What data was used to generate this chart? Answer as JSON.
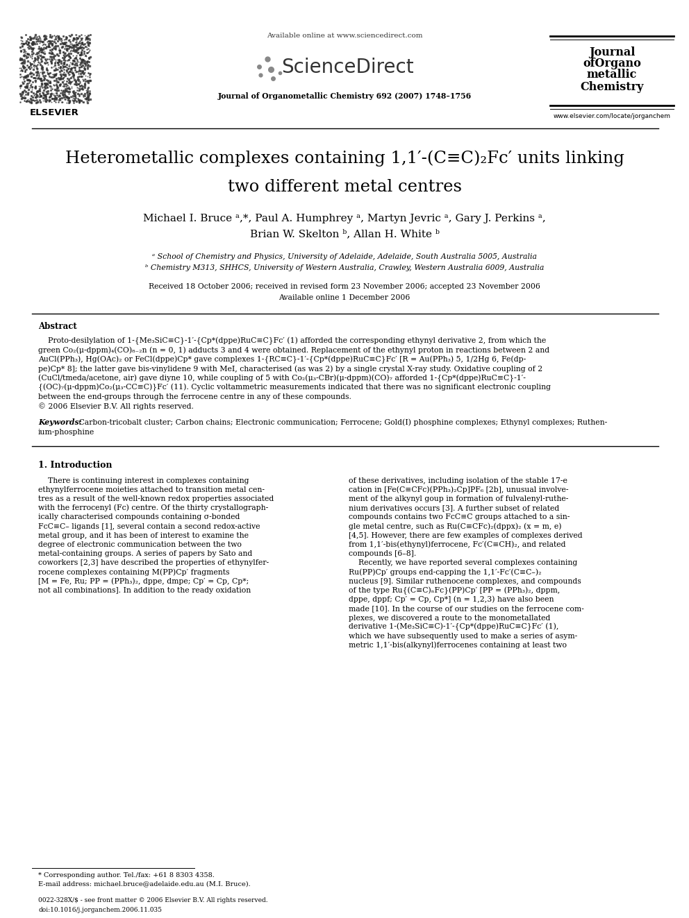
{
  "background_color": "#ffffff",
  "page_width": 9.92,
  "page_height": 13.23,
  "header": {
    "available_online": "Available online at www.sciencedirect.com",
    "sciencedirect": "ScienceDirect",
    "journal_line": "Journal of Organometallic Chemistry 692 (2007) 1748–1756",
    "journal_name_lines": [
      "Journal",
      "ofOrgano",
      "metallic",
      "Chemistry"
    ],
    "website": "www.elsevier.com/locate/jorganchem",
    "elsevier": "ELSEVIER"
  },
  "title_line1": "Heterometallic complexes containing 1,1′-(C≡C)₂Fc′ units linking",
  "title_line2": "two different metal centres",
  "authors_line1": "Michael I. Bruce ᵃ,*, Paul A. Humphrey ᵃ, Martyn Jevric ᵃ, Gary J. Perkins ᵃ,",
  "authors_line2": "Brian W. Skelton ᵇ, Allan H. White ᵇ",
  "affil_a": "ᵃ School of Chemistry and Physics, University of Adelaide, Adelaide, South Australia 5005, Australia",
  "affil_b": "ᵇ Chemistry M313, SHHCS, University of Western Australia, Crawley, Western Australia 6009, Australia",
  "received": "Received 18 October 2006; received in revised form 23 November 2006; accepted 23 November 2006",
  "available": "Available online 1 December 2006",
  "abstract_title": "Abstract",
  "keywords_label": "Keywords:",
  "keywords_text": " Carbon-tricobalt cluster; Carbon chains; Electronic communication; Ferrocene; Gold(I) phosphine complexes; Ethynyl complexes; Ruthen-",
  "keywords_text2": "ium-phosphine",
  "section1_title": "1. Introduction",
  "footnote_line1": "* Corresponding author. Tel./fax: +61 8 8303 4358.",
  "footnote_line2": "E-mail address: michael.bruce@adelaide.edu.au (M.I. Bruce).",
  "footer_line1": "0022-328X/$ - see front matter © 2006 Elsevier B.V. All rights reserved.",
  "footer_line2": "doi:10.1016/j.jorganchem.2006.11.035",
  "abstract_lines": [
    "    Proto-desilylation of 1-{Me₃SiC≡C}-1′-{Cp*(dppe)RuC≡C}Fc′ (1) afforded the corresponding ethynyl derivative 2, from which the",
    "green Co₂(μ-dppm)₄(CO)₈₋₂n (n = 0, 1) adducts 3 and 4 were obtained. Replacement of the ethynyl proton in reactions between 2 and",
    "AuCl(PPh₃), Hg(OAc)₂ or FeCl(dppe)Cp* gave complexes 1-{RC≡C}-1′-{Cp*(dppe)RuC≡C}Fc′ [R = Au(PPh₃) 5, 1/2Hg 6, Fe(dp-",
    "pe)Cp* 8]; the latter gave bis-vinylidene 9 with MeI, characterised (as was 2) by a single crystal X-ray study. Oxidative coupling of 2",
    "(CuCl/tmeda/acetone, air) gave diyne 10, while coupling of 5 with Co₂(μ₃-CBr)(μ-dppm)(CO)₇ afforded 1-{Cp*(dppe)RuC≡C}-1′-",
    "{(OC)₇(μ-dppm)Co₂(μ₃-CC≡C)}Fc′ (11). Cyclic voltammetric measurements indicated that there was no significant electronic coupling",
    "between the end-groups through the ferrocene centre in any of these compounds.",
    "© 2006 Elsevier B.V. All rights reserved."
  ],
  "left_col_lines": [
    "    There is continuing interest in complexes containing",
    "ethynylferrocene moieties attached to transition metal cen-",
    "tres as a result of the well-known redox properties associated",
    "with the ferrocenyl (Fc) centre. Of the thirty crystallograph-",
    "ically characterised compounds containing σ-bonded",
    "FcC≡C– ligands [1], several contain a second redox-active",
    "metal group, and it has been of interest to examine the",
    "degree of electronic communication between the two",
    "metal-containing groups. A series of papers by Sato and",
    "coworkers [2,3] have described the properties of ethynylfer-",
    "rocene complexes containing M(PP)Cp′ fragments",
    "[M = Fe, Ru; PP = (PPh₃)₂, dppe, dmpe; Cp′ = Cp, Cp*;",
    "not all combinations]. In addition to the ready oxidation"
  ],
  "right_col_lines": [
    "of these derivatives, including isolation of the stable 17-e",
    "cation in [Fe(C≡CFc)(PPh₃)₂Cp]PF₆ [2b], unusual involve-",
    "ment of the alkynyl goup in formation of fulvalenyl-ruthe-",
    "nium derivatives occurs [3]. A further subset of related",
    "compounds contains two FcC≡C groups attached to a sin-",
    "gle metal centre, such as Ru(C≡CFc)₂(dppx)₂ (x = m, e)",
    "[4,5]. However, there are few examples of complexes derived",
    "from 1,1′-bis(ethynyl)ferrocene, Fc′(C≡CH)₂, and related",
    "compounds [6–8].",
    "    Recently, we have reported several complexes containing",
    "Ru(PP)Cp′ groups end-capping the 1,1′-Fc′(C≡C–)₂",
    "nucleus [9]. Similar ruthenocene complexes, and compounds",
    "of the type Ru{(C≡C)ₙFc}(PP)Cp′ [PP = (PPh₃)₂, dppm,",
    "dppe, dppf; Cp′ = Cp, Cp*] (n = 1,2,3) have also been",
    "made [10]. In the course of our studies on the ferrocene com-",
    "plexes, we discovered a route to the monometallated",
    "derivative 1-(Me₃SiC≡C)-1′-{Cp*(dppe)RuC≡C}Fc′ (1),",
    "which we have subsequently used to make a series of asym-",
    "metric 1,1′-bis(alkynyl)ferrocenes containing at least two"
  ]
}
